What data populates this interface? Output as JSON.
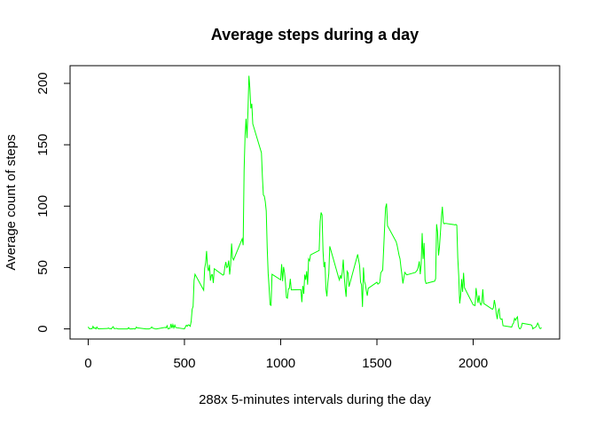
{
  "chart_data": {
    "type": "line",
    "title": "Average steps during a day",
    "x_label": "288x 5-minutes intervals during the day",
    "y_label": "Average count of steps",
    "color": "#00ff00",
    "xlim": [
      -94.2,
      2449.2
    ],
    "ylim": [
      -8.25,
      214.42
    ],
    "xticks": [
      0,
      500,
      1000,
      1500,
      2000
    ],
    "yticks": [
      0,
      50,
      100,
      150,
      200
    ],
    "x": [
      0,
      5,
      10,
      15,
      20,
      25,
      30,
      35,
      40,
      45,
      50,
      55,
      100,
      105,
      110,
      115,
      120,
      125,
      130,
      135,
      140,
      145,
      150,
      155,
      200,
      205,
      210,
      215,
      220,
      225,
      230,
      235,
      240,
      245,
      250,
      255,
      300,
      305,
      310,
      315,
      320,
      325,
      330,
      335,
      340,
      345,
      350,
      355,
      400,
      405,
      410,
      415,
      420,
      425,
      430,
      435,
      440,
      445,
      450,
      455,
      500,
      505,
      510,
      515,
      520,
      525,
      530,
      535,
      540,
      545,
      550,
      555,
      600,
      605,
      610,
      615,
      620,
      625,
      630,
      635,
      640,
      645,
      650,
      655,
      700,
      705,
      710,
      715,
      720,
      725,
      730,
      735,
      740,
      745,
      750,
      755,
      800,
      805,
      810,
      815,
      820,
      825,
      830,
      835,
      840,
      845,
      850,
      855,
      900,
      905,
      910,
      915,
      920,
      925,
      930,
      935,
      940,
      945,
      950,
      955,
      1000,
      1005,
      1010,
      1015,
      1020,
      1025,
      1030,
      1035,
      1040,
      1045,
      1050,
      1055,
      1100,
      1105,
      1110,
      1115,
      1120,
      1125,
      1130,
      1135,
      1140,
      1145,
      1150,
      1155,
      1200,
      1205,
      1210,
      1215,
      1220,
      1225,
      1230,
      1235,
      1240,
      1245,
      1250,
      1255,
      1300,
      1305,
      1310,
      1315,
      1320,
      1325,
      1330,
      1335,
      1340,
      1345,
      1350,
      1355,
      1400,
      1405,
      1410,
      1415,
      1420,
      1425,
      1430,
      1435,
      1440,
      1445,
      1450,
      1455,
      1500,
      1505,
      1510,
      1515,
      1520,
      1525,
      1530,
      1535,
      1540,
      1545,
      1550,
      1555,
      1600,
      1605,
      1610,
      1615,
      1620,
      1625,
      1630,
      1635,
      1640,
      1645,
      1650,
      1655,
      1700,
      1705,
      1710,
      1715,
      1720,
      1725,
      1730,
      1735,
      1740,
      1745,
      1750,
      1755,
      1800,
      1805,
      1810,
      1815,
      1820,
      1825,
      1830,
      1835,
      1840,
      1845,
      1850,
      1855,
      1900,
      1905,
      1910,
      1915,
      1920,
      1925,
      1930,
      1935,
      1940,
      1945,
      1950,
      1955,
      2000,
      2005,
      2010,
      2015,
      2020,
      2025,
      2030,
      2035,
      2040,
      2045,
      2050,
      2055,
      2100,
      2105,
      2110,
      2115,
      2120,
      2125,
      2130,
      2135,
      2140,
      2145,
      2150,
      2155,
      2200,
      2205,
      2210,
      2215,
      2220,
      2225,
      2230,
      2235,
      2240,
      2245,
      2250,
      2255,
      2300,
      2305,
      2310,
      2315,
      2320,
      2325,
      2330,
      2335,
      2340,
      2345,
      2350,
      2355
    ],
    "values": [
      1.7,
      0.3,
      0.1,
      0.2,
      0.1,
      2.1,
      0.5,
      0.9,
      0,
      1.5,
      0.3,
      0.1,
      0.3,
      0.7,
      0.2,
      0.3,
      0,
      1.1,
      1.8,
      0.2,
      0.2,
      0.4,
      0.3,
      0,
      0,
      0,
      1.1,
      0,
      0,
      0.1,
      0,
      0.2,
      0,
      0,
      1.5,
      0.9,
      0,
      0,
      0,
      0,
      0.2,
      0.6,
      1.6,
      0.6,
      0.5,
      0.1,
      0,
      0,
      1.2,
      0.9,
      2.6,
      0,
      0.3,
      0.4,
      4.1,
      0.7,
      3.5,
      0.8,
      3.1,
      1.1,
      0,
      1.6,
      3,
      2.2,
      3.3,
      3,
      2.1,
      6.1,
      16,
      18.3,
      39.5,
      44.5,
      31.5,
      49.3,
      53.8,
      63.5,
      50,
      47.1,
      52.2,
      39.3,
      44,
      44.2,
      37.4,
      49,
      43.8,
      44.4,
      50.5,
      54.5,
      49.9,
      50.9,
      55.7,
      44.3,
      52.3,
      69.5,
      57.8,
      56.2,
      73.4,
      68.2,
      129.4,
      157.5,
      171.2,
      155.4,
      177.3,
      206.2,
      195.9,
      179.6,
      183.4,
      167,
      143.5,
      124,
      109.1,
      108.1,
      103.7,
      96,
      66.2,
      45.2,
      33.5,
      19.6,
      19.2,
      44.5,
      40,
      52.7,
      38.9,
      50.5,
      45.9,
      37.3,
      25.5,
      25,
      32.6,
      33,
      40.8,
      31.8,
      32,
      32,
      21.8,
      35,
      28.6,
      44.2,
      40,
      47,
      36,
      57,
      55.5,
      60.3,
      63.9,
      87.5,
      94.8,
      92.8,
      63.4,
      50.2,
      54.5,
      32.4,
      26.5,
      37.7,
      45.1,
      67.3,
      42.3,
      39.9,
      43.7,
      40.9,
      46.2,
      56.4,
      42.8,
      33.3,
      26.1,
      47,
      45.7,
      34.4,
      60.7,
      56.2,
      51.6,
      38.1,
      36,
      17.9,
      50,
      38.6,
      36.2,
      31,
      27,
      33.1,
      38,
      36.5,
      37,
      38,
      45.7,
      46.8,
      47.9,
      65.3,
      82.9,
      98.7,
      102.1,
      84,
      71,
      68,
      64,
      60,
      57,
      50,
      44,
      37,
      42,
      46,
      45,
      44,
      46,
      47,
      48,
      50.6,
      55,
      44.6,
      53,
      78,
      57,
      70,
      40,
      37,
      38.9,
      40.9,
      85.3,
      79,
      59.8,
      67,
      78.5,
      91,
      99.5,
      86.6,
      85.6,
      86,
      84.9,
      84.7,
      85.1,
      84.5,
      57.8,
      43.2,
      20.7,
      27.4,
      40.5,
      30.2,
      45.7,
      33.5,
      19.6,
      19.3,
      19,
      33.3,
      26.8,
      21.2,
      27.3,
      21.3,
      19.5,
      21.3,
      32.3,
      20.7,
      15.9,
      17.2,
      23.5,
      19.2,
      12.5,
      8,
      14.7,
      16.3,
      8.7,
      7.8,
      8.1,
      2.6,
      1.5,
      3.7,
      4.8,
      8.5,
      7.1,
      8.7,
      9.8,
      2.2,
      0.3,
      0.1,
      1.6,
      4.6,
      3.3,
      2.8,
      0,
      0.8,
      1,
      1.6,
      2.6,
      4.7,
      3.3,
      0.6,
      0.2,
      1.1
    ]
  }
}
